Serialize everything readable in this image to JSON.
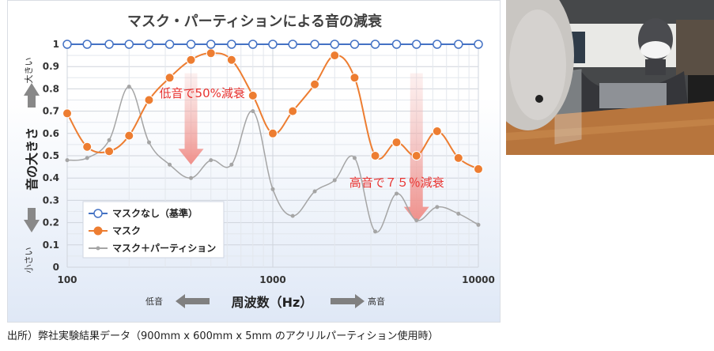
{
  "chart_data": {
    "type": "line",
    "title": "マスク・パーティションによる音の減衰",
    "xscale": "log",
    "xlim": [
      100,
      10000
    ],
    "ylim": [
      0,
      1
    ],
    "xticks": [
      "100",
      "1000",
      "10000"
    ],
    "yticks": [
      "0",
      "0.1",
      "0.2",
      "0.3",
      "0.4",
      "0.5",
      "0.6",
      "0.7",
      "0.8",
      "0.9",
      "1"
    ],
    "xlabel": "周波数（Hz）",
    "xlabel_low": "低音",
    "xlabel_high": "高音",
    "ylabel": "音の大きさ",
    "ylabel_high": "大きい",
    "ylabel_low": "小さい",
    "series": [
      {
        "name": "マスクなし（基準）",
        "color": "#4472c4",
        "marker": "circle-open",
        "x": [
          100,
          125,
          160,
          200,
          250,
          315,
          400,
          500,
          630,
          800,
          1000,
          1250,
          1600,
          2000,
          2500,
          3150,
          4000,
          5000,
          6300,
          8000,
          10000
        ],
        "y": [
          1,
          1,
          1,
          1,
          1,
          1,
          1,
          1,
          1,
          1,
          1,
          1,
          1,
          1,
          1,
          1,
          1,
          1,
          1,
          1,
          1
        ]
      },
      {
        "name": "マスク",
        "color": "#ed7d31",
        "marker": "circle-filled",
        "x": [
          100,
          125,
          160,
          200,
          250,
          315,
          400,
          500,
          630,
          800,
          1000,
          1250,
          1600,
          2000,
          2500,
          3150,
          4000,
          5000,
          6300,
          8000,
          10000
        ],
        "y": [
          0.69,
          0.54,
          0.52,
          0.59,
          0.75,
          0.85,
          0.93,
          0.96,
          0.93,
          0.77,
          0.6,
          0.7,
          0.82,
          0.95,
          0.85,
          0.5,
          0.56,
          0.5,
          0.61,
          0.49,
          0.44
        ]
      },
      {
        "name": "マスク＋パーティション",
        "color": "#a5a5a5",
        "marker": "dot",
        "x": [
          100,
          125,
          160,
          200,
          250,
          315,
          400,
          500,
          630,
          800,
          1000,
          1250,
          1600,
          2000,
          2500,
          3150,
          4000,
          5000,
          6300,
          8000,
          10000
        ],
        "y": [
          0.48,
          0.49,
          0.57,
          0.81,
          0.56,
          0.46,
          0.4,
          0.48,
          0.46,
          0.7,
          0.35,
          0.23,
          0.34,
          0.39,
          0.49,
          0.16,
          0.33,
          0.21,
          0.27,
          0.24,
          0.19
        ]
      }
    ],
    "annotations": [
      {
        "text": "低音で50%減衰",
        "x": 400,
        "y_from": 0.87,
        "y_to": 0.46
      },
      {
        "text": "高音で７５％減衰",
        "x": 5000,
        "y_from": 0.87,
        "y_to": 0.2
      }
    ],
    "legend": "bottom-left"
  },
  "caption": "出所）弊社実験結果データ（900mm x 600mm x 5mm のアクリルパーティション使用時）",
  "photo_alt": "マネキンとアクリルパーティションによる実験の様子"
}
